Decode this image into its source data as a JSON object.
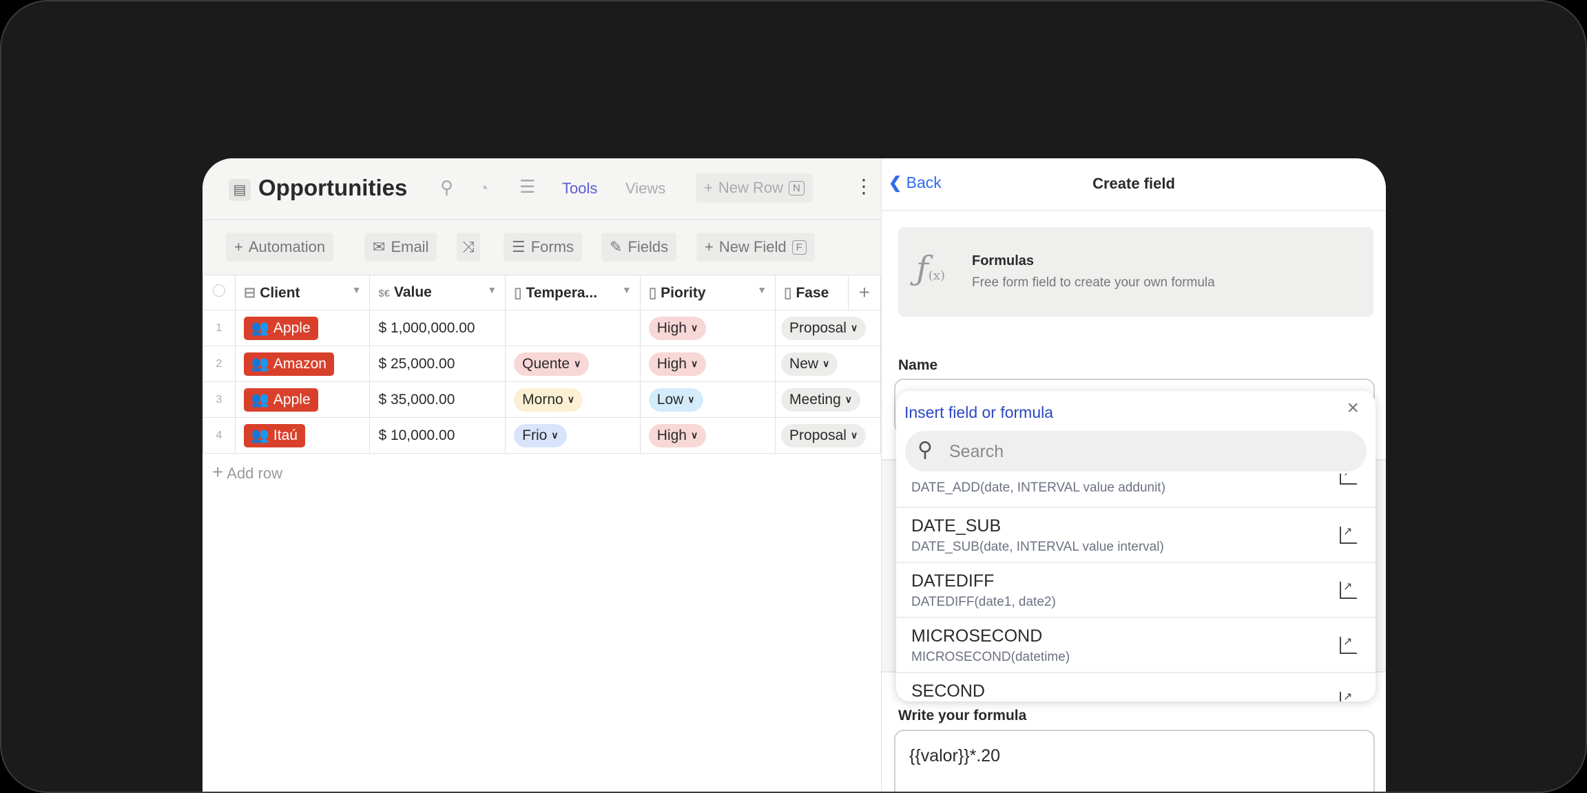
{
  "header": {
    "title": "Opportunities",
    "tools": "Tools",
    "views": "Views",
    "new_row": "New Row",
    "new_row_key": "N"
  },
  "toolbar": {
    "automation": "Automation",
    "email": "Email",
    "forms": "Forms",
    "fields": "Fields",
    "new_field": "New Field",
    "new_field_key": "F"
  },
  "table": {
    "columns": [
      "Client",
      "Value",
      "Tempera...",
      "Piority",
      "Fase"
    ],
    "value_prefix": "$€",
    "rows": [
      {
        "n": "1",
        "client": "Apple",
        "value": "$ 1,000,000.00",
        "temp": "",
        "priority": "High",
        "fase": "Proposal"
      },
      {
        "n": "2",
        "client": "Amazon",
        "value": "$ 25,000.00",
        "temp": "Quente",
        "priority": "High",
        "fase": "New"
      },
      {
        "n": "3",
        "client": "Apple",
        "value": "$ 35,000.00",
        "temp": "Morno",
        "priority": "Low",
        "fase": "Meeting"
      },
      {
        "n": "4",
        "client": "Itaú",
        "value": "$ 10,000.00",
        "temp": "Frio",
        "priority": "High",
        "fase": "Proposal"
      }
    ],
    "add_row": "Add row"
  },
  "panel": {
    "back": "Back",
    "title": "Create field",
    "card_title": "Formulas",
    "card_desc": "Free form field to create your own formula",
    "name_label": "Name",
    "formula_label": "Write your formula",
    "formula_value": "{{valor}}*.20"
  },
  "popup": {
    "title": "Insert field or formula",
    "search_placeholder": "Search",
    "items": [
      {
        "name": "",
        "sig": "DATE_ADD(date, INTERVAL value addunit)"
      },
      {
        "name": "DATE_SUB",
        "sig": "DATE_SUB(date, INTERVAL value interval)"
      },
      {
        "name": "DATEDIFF",
        "sig": "DATEDIFF(date1, date2)"
      },
      {
        "name": "MICROSECOND",
        "sig": "MICROSECOND(datetime)"
      },
      {
        "name": "SECOND",
        "sig": ""
      }
    ]
  },
  "colors": {
    "accent": "#5b5bd6",
    "link": "#2b46c2",
    "client_chip": "#d9402b"
  }
}
